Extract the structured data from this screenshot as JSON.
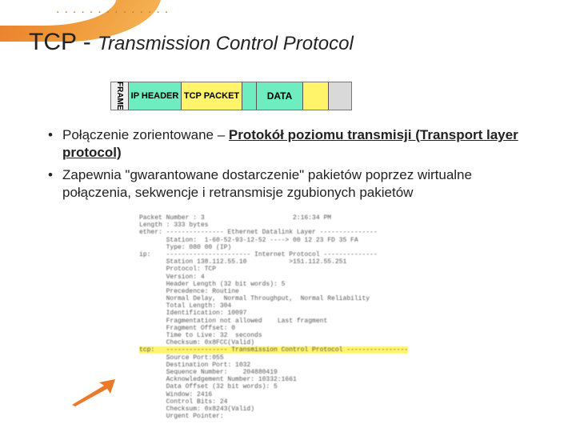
{
  "title": {
    "main": "TCP - ",
    "sub": "Transmission Control Protocol"
  },
  "frame": {
    "seg_frame": {
      "label": "FRAME",
      "bg": "#f0f0f0"
    },
    "seg_ip": {
      "label": "IP HEADER",
      "bg": "#6eeec0"
    },
    "seg_tcp": {
      "label": "TCP PACKET",
      "bg": "#fff46a"
    },
    "seg_blank": {
      "label": "",
      "bg": "#6eeec0"
    },
    "seg_data": {
      "label": "DATA",
      "bg": "#6eeec0"
    },
    "seg_yellow": {
      "label": "",
      "bg": "#fff46a"
    },
    "seg_end": {
      "label": "",
      "bg": "#d9d9d9"
    }
  },
  "bullets": {
    "b1_a": "Połączenie zorientowane – ",
    "b1_b": "Protokół poziomu transmisji (Transport layer protocol)",
    "b2": "Zapewnia \"gwarantowane dostarczenie\" pakietów poprzez wirtualne połączenia, sekwencje i retransmisje zgubionych pakietów"
  },
  "dump": {
    "l01": "Packet Number : 3                       2:16:34 PM",
    "l02": "Length : 333 bytes",
    "l03": "ether: --------------- Ethernet Datalink Layer ---------------",
    "l04": "       Station:  1-60-52-93-12-52 ----> 00 12 23 FD 35 FA",
    "l05": "       Type: 080 00 (IP)",
    "l06": "ip:    ---------------------- Internet Protocol --------------",
    "l07": "       Station 138.112.55.10           >151.112.55.251",
    "l08": "       Protocol: TCP",
    "l09": "       Version: 4",
    "l10": "       Header Length (32 bit words): 5",
    "l11": "       Precedence: Routine",
    "l12": "       Normal Delay,  Normal Throughput,  Normal Reliability",
    "l13": "       Total Length: 304",
    "l14": "       Identification: 10097",
    "l15": "       Fragmentation not allowed    Last fragment",
    "l16": "       Fragment Offset: 0",
    "l17": "       Time to Live: 32  seconds",
    "l18": "       Checksum: 0x8FCC(Valid)",
    "l19": "tcp:   ---------------- Transmission Control Protocol ----------------",
    "l20": "       Source Port:055",
    "l21": "       Destination Port: 1032",
    "l22": "       Sequence Number:    204880419",
    "l23": "       Acknowledgement Number: 10332:1661",
    "l24": "       Data Offset (32 bit words): 5",
    "l25": "       Window: 2416",
    "l26": "       Control Bits: 24",
    "l27": "       Checksum: 0x8243(Valid)",
    "l28": "       Urgent Pointer:"
  },
  "colors": {
    "arrow": "#e97a2a"
  }
}
